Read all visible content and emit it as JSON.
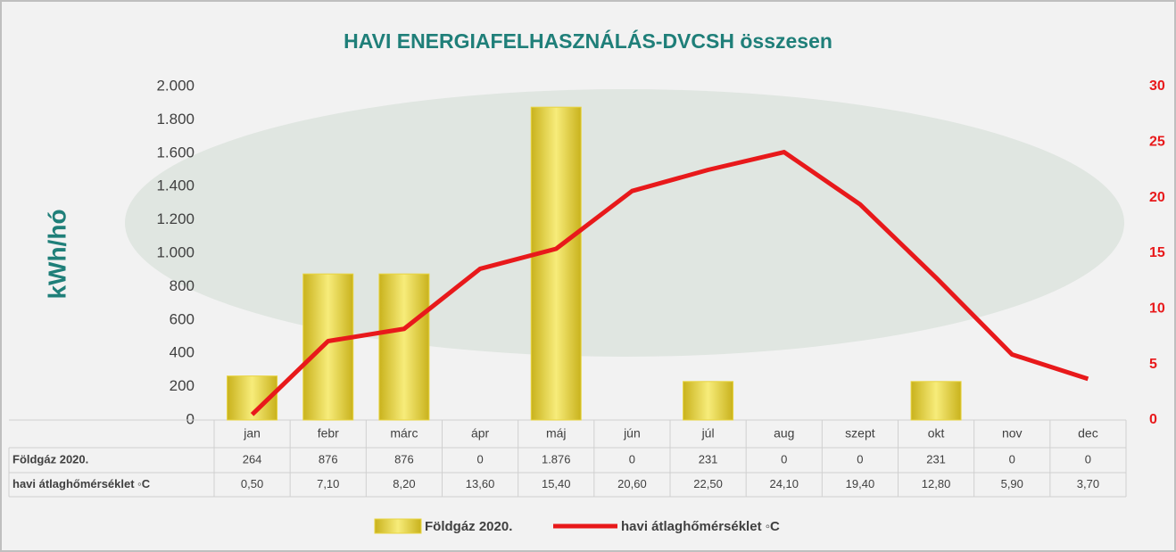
{
  "chart_data": {
    "type": "bar-line",
    "title": "HAVI ENERGIAFELHASZNÁLÁS-DVCSH összesen",
    "y_label": "kWh/hó",
    "categories": [
      "jan",
      "febr",
      "márc",
      "ápr",
      "máj",
      "jún",
      "júl",
      "aug",
      "szept",
      "okt",
      "nov",
      "dec"
    ],
    "series": [
      {
        "name": "Földgáz 2020.",
        "type": "bar",
        "color": "#e8d440",
        "values": [
          264,
          876,
          876,
          0,
          1876,
          0,
          231,
          0,
          0,
          231,
          0,
          0
        ],
        "value_labels": [
          "264",
          "876",
          "876",
          "0",
          "1.876",
          "0",
          "231",
          "0",
          "0",
          "231",
          "0",
          "0"
        ]
      },
      {
        "name": "havi átlaghőmérséklet ◦C",
        "type": "line",
        "color": "#e8191b",
        "axis": "y2",
        "values": [
          0.5,
          7.1,
          8.2,
          13.6,
          15.4,
          20.6,
          22.5,
          24.1,
          19.4,
          12.8,
          5.9,
          3.7
        ],
        "value_labels": [
          "0,50",
          "7,10",
          "8,20",
          "13,60",
          "15,40",
          "20,60",
          "22,50",
          "24,10",
          "19,40",
          "12,80",
          "5,90",
          "3,70"
        ]
      }
    ],
    "ylim": [
      0,
      2000
    ],
    "yticks": [
      0,
      200,
      400,
      600,
      800,
      {
        "value": 1000,
        "label": "1.000"
      },
      {
        "value": 1200,
        "label": "1.200"
      },
      {
        "value": 1400,
        "label": "1.400"
      },
      {
        "value": 1600,
        "label": "1.600"
      },
      {
        "value": 1800,
        "label": "1.800"
      },
      {
        "value": 2000,
        "label": "2.000"
      }
    ],
    "y2lim": [
      0,
      30
    ],
    "y2ticks": [
      0,
      5,
      10,
      15,
      20,
      25,
      30
    ],
    "legend": "bottom"
  }
}
